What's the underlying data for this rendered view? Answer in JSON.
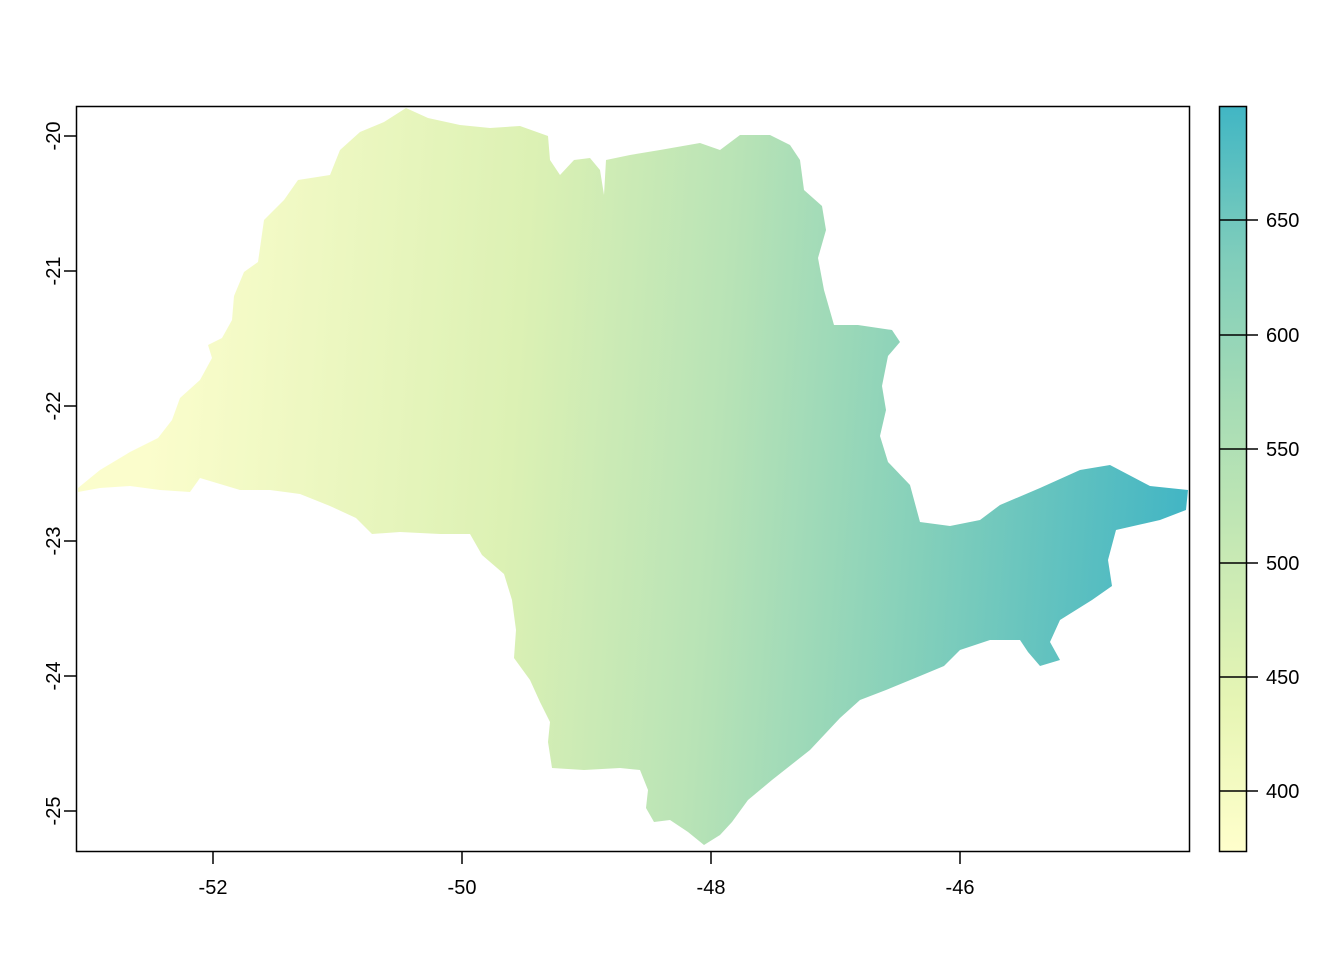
{
  "map": {
    "x_ticks": [
      "-52",
      "-50",
      "-48",
      "-46"
    ],
    "y_ticks": [
      "-20",
      "-21",
      "-22",
      "-23",
      "-24",
      "-25"
    ],
    "x_range": [
      -53.1,
      -44.2
    ],
    "y_range": [
      -25.3,
      -19.8
    ]
  },
  "legend": {
    "ticks": [
      "400",
      "450",
      "500",
      "550",
      "600",
      "650"
    ],
    "value_range": [
      373,
      697
    ],
    "colors": [
      "#ffffcc",
      "#e6f5b4",
      "#c7e9b4",
      "#a6dcb5",
      "#7fcdbb",
      "#41b6c4"
    ]
  }
}
